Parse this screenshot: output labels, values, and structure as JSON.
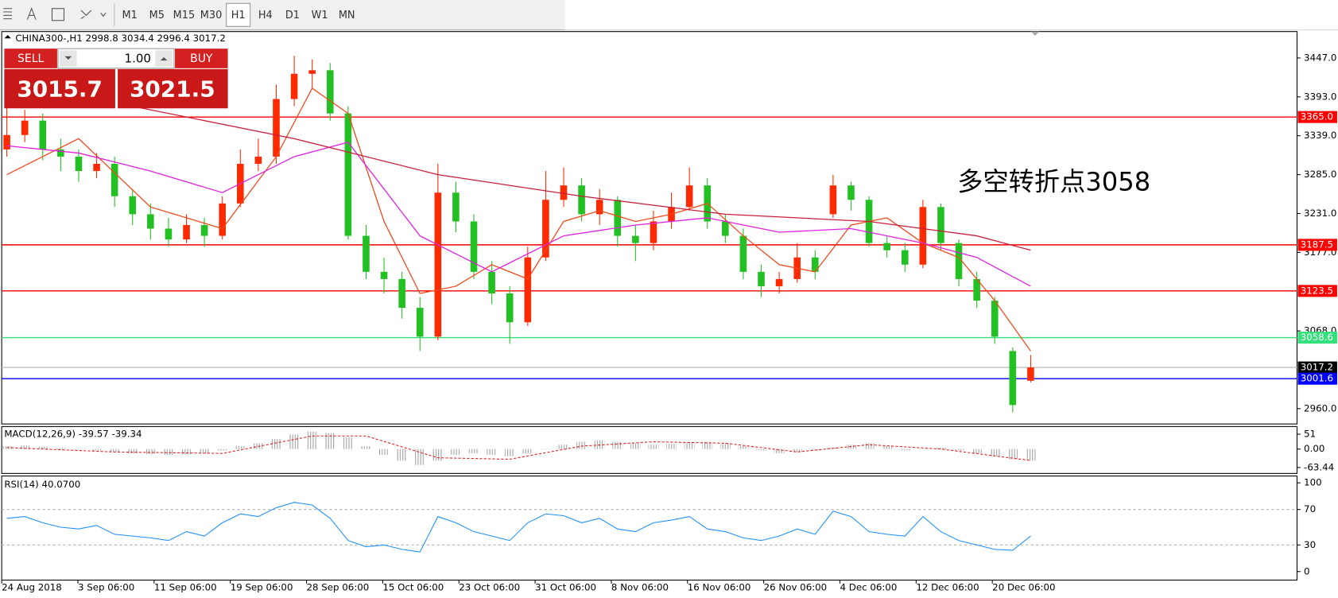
{
  "toolbar": {
    "timeframes": [
      "M1",
      "M5",
      "M15",
      "M30",
      "H1",
      "H4",
      "D1",
      "W1",
      "MN"
    ],
    "active": "H1"
  },
  "trade_panel": {
    "sell": "SELL",
    "buy": "BUY",
    "lot": "1.00",
    "sell_price": "3015.7",
    "buy_price": "3021.5"
  },
  "chart_data": {
    "type": "candlestick",
    "header": "CHINA300-,H1  2998.8 3034.4 2996.4 3017.2",
    "annotation": "多空转折点3058",
    "up_color": "#ff2a00",
    "down_color": "#22c022",
    "ylim": [
      2938.7,
      3483.7
    ],
    "yticks": [
      {
        "value": 3447,
        "label": "3447.0"
      },
      {
        "value": 3393,
        "label": "3393.0"
      },
      {
        "value": 3339,
        "label": "3339.0"
      },
      {
        "value": 3285,
        "label": "3285.0"
      },
      {
        "value": 3231,
        "label": "3231.0"
      },
      {
        "value": 3177,
        "label": "3177.0"
      },
      {
        "value": 3068,
        "label": "3068.0"
      },
      {
        "value": 2960,
        "label": "2960.0"
      }
    ],
    "x_tick_labels": [
      "24 Aug 2018",
      "3 Sep 06:00",
      "11 Sep 06:00",
      "19 Sep 06:00",
      "28 Sep 06:00",
      "15 Oct 06:00",
      "23 Oct 06:00",
      "31 Oct 06:00",
      "8 Nov 06:00",
      "16 Nov 06:00",
      "26 Nov 06:00",
      "4 Dec 06:00",
      "12 Dec 06:00",
      "20 Dec 06:00"
    ],
    "candles": [
      [
        3320,
        3380,
        3310,
        3340
      ],
      [
        3340,
        3375,
        3330,
        3360
      ],
      [
        3360,
        3370,
        3305,
        3320
      ],
      [
        3320,
        3335,
        3290,
        3310
      ],
      [
        3310,
        3320,
        3275,
        3290
      ],
      [
        3290,
        3315,
        3280,
        3300
      ],
      [
        3300,
        3310,
        3240,
        3255
      ],
      [
        3255,
        3265,
        3215,
        3230
      ],
      [
        3230,
        3245,
        3195,
        3210
      ],
      [
        3210,
        3225,
        3185,
        3195
      ],
      [
        3195,
        3230,
        3190,
        3215
      ],
      [
        3215,
        3225,
        3185,
        3200
      ],
      [
        3200,
        3255,
        3195,
        3245
      ],
      [
        3245,
        3320,
        3240,
        3300
      ],
      [
        3300,
        3335,
        3290,
        3310
      ],
      [
        3310,
        3410,
        3300,
        3390
      ],
      [
        3390,
        3450,
        3380,
        3425
      ],
      [
        3425,
        3445,
        3405,
        3430
      ],
      [
        3430,
        3440,
        3360,
        3370
      ],
      [
        3370,
        3380,
        3195,
        3200
      ],
      [
        3200,
        3215,
        3140,
        3150
      ],
      [
        3150,
        3170,
        3120,
        3140
      ],
      [
        3140,
        3150,
        3085,
        3100
      ],
      [
        3100,
        3115,
        3040,
        3060
      ],
      [
        3060,
        3300,
        3055,
        3260
      ],
      [
        3260,
        3275,
        3205,
        3220
      ],
      [
        3220,
        3230,
        3140,
        3150
      ],
      [
        3150,
        3165,
        3105,
        3120
      ],
      [
        3120,
        3130,
        3050,
        3080
      ],
      [
        3080,
        3185,
        3075,
        3170
      ],
      [
        3170,
        3290,
        3165,
        3250
      ],
      [
        3250,
        3295,
        3240,
        3270
      ],
      [
        3270,
        3280,
        3220,
        3230
      ],
      [
        3230,
        3265,
        3215,
        3250
      ],
      [
        3250,
        3255,
        3185,
        3200
      ],
      [
        3200,
        3215,
        3165,
        3190
      ],
      [
        3190,
        3235,
        3180,
        3220
      ],
      [
        3220,
        3260,
        3210,
        3240
      ],
      [
        3240,
        3295,
        3235,
        3270
      ],
      [
        3270,
        3280,
        3210,
        3220
      ],
      [
        3220,
        3230,
        3190,
        3200
      ],
      [
        3200,
        3210,
        3140,
        3150
      ],
      [
        3150,
        3160,
        3115,
        3130
      ],
      [
        3130,
        3150,
        3120,
        3140
      ],
      [
        3140,
        3190,
        3135,
        3170
      ],
      [
        3170,
        3180,
        3140,
        3150
      ],
      [
        3230,
        3285,
        3225,
        3270
      ],
      [
        3270,
        3275,
        3235,
        3250
      ],
      [
        3250,
        3255,
        3185,
        3190
      ],
      [
        3190,
        3200,
        3170,
        3180
      ],
      [
        3180,
        3190,
        3150,
        3160
      ],
      [
        3160,
        3250,
        3155,
        3240
      ],
      [
        3240,
        3245,
        3180,
        3190
      ],
      [
        3190,
        3195,
        3130,
        3140
      ],
      [
        3140,
        3150,
        3100,
        3110
      ],
      [
        3110,
        3115,
        3050,
        3060
      ],
      [
        3040,
        3045,
        2955,
        2965
      ],
      [
        2998.8,
        3034.4,
        2996.4,
        3017.2
      ]
    ],
    "ma": [
      {
        "color": "#f04a1a",
        "x": [
          0,
          4,
          8,
          12,
          15,
          17,
          19,
          21,
          23,
          25,
          27,
          29,
          31,
          33,
          35,
          37,
          39,
          41,
          43,
          45,
          47,
          49,
          51,
          53,
          55,
          57
        ],
        "values": [
          3285,
          3335,
          3240,
          3210,
          3310,
          3405,
          3370,
          3220,
          3120,
          3130,
          3160,
          3140,
          3220,
          3235,
          3220,
          3230,
          3245,
          3200,
          3160,
          3150,
          3215,
          3225,
          3190,
          3170,
          3110,
          3040
        ]
      },
      {
        "color": "#e020e0",
        "x": [
          0,
          4,
          8,
          12,
          16,
          19,
          23,
          27,
          31,
          35,
          39,
          43,
          47,
          51,
          54,
          57
        ],
        "values": [
          3325,
          3315,
          3290,
          3260,
          3310,
          3330,
          3200,
          3150,
          3200,
          3215,
          3225,
          3205,
          3210,
          3190,
          3170,
          3130
        ]
      },
      {
        "color": "#c81e3c",
        "x": [
          7,
          16,
          24,
          32,
          40,
          48,
          54,
          57
        ],
        "values": [
          3380,
          3335,
          3285,
          3255,
          3230,
          3220,
          3200,
          3180
        ]
      }
    ],
    "levels": [
      {
        "value": 3365,
        "label": "3365.0",
        "line_color": "#ff0000",
        "tag_color": "#ff0000"
      },
      {
        "value": 3187.5,
        "label": "3187.5",
        "line_color": "#ff0000",
        "tag_color": "#ff0000"
      },
      {
        "value": 3123.5,
        "label": "3123.5",
        "line_color": "#ff0000",
        "tag_color": "#ff0000"
      },
      {
        "value": 3058.6,
        "label": "3058.6",
        "line_color": "#33e07a",
        "tag_color": "#33e07a"
      },
      {
        "value": 3017.2,
        "label": "3017.2",
        "line_color": "#c0c0c0",
        "tag_color": "#000000"
      },
      {
        "value": 3001.6,
        "label": "3001.6",
        "line_color": "#0000ff",
        "tag_color": "#0000ff"
      }
    ],
    "macd": {
      "label": "MACD(12,26,9) -39.57 -39.34",
      "ylim": [
        -83.9,
        77.4
      ],
      "yticks": [
        51,
        {
          "value": 0,
          "label": "0.00"
        },
        -63.44
      ],
      "histogram": [
        10,
        12,
        8,
        4,
        0,
        -5,
        -10,
        -15,
        -18,
        -20,
        -18,
        -15,
        -5,
        10,
        20,
        35,
        50,
        60,
        55,
        40,
        10,
        -20,
        -40,
        -55,
        -40,
        -20,
        -15,
        -20,
        -25,
        -15,
        0,
        15,
        25,
        30,
        25,
        20,
        15,
        18,
        22,
        25,
        20,
        10,
        -5,
        -15,
        -10,
        -5,
        5,
        15,
        20,
        10,
        -5,
        0,
        5,
        -5,
        -15,
        -25,
        -35,
        -39.57
      ],
      "signal": {
        "x": [
          0,
          6,
          12,
          17,
          20,
          24,
          28,
          32,
          36,
          40,
          44,
          48,
          52,
          57
        ],
        "values": [
          5,
          -10,
          -15,
          45,
          45,
          -30,
          -35,
          10,
          25,
          20,
          -10,
          15,
          0,
          -39.34
        ]
      }
    },
    "rsi": {
      "label": "RSI(14) 40.0700",
      "ylim": [
        -9.6,
        107.7
      ],
      "yticks": [
        100,
        70,
        30,
        0
      ],
      "levels": [
        70,
        30
      ],
      "values": [
        60,
        62,
        55,
        50,
        48,
        52,
        42,
        40,
        38,
        35,
        45,
        40,
        55,
        65,
        62,
        72,
        78,
        75,
        60,
        35,
        28,
        30,
        25,
        22,
        62,
        55,
        45,
        40,
        35,
        55,
        65,
        63,
        55,
        60,
        48,
        45,
        55,
        58,
        62,
        48,
        45,
        38,
        35,
        40,
        48,
        42,
        68,
        62,
        45,
        42,
        40,
        62,
        45,
        35,
        30,
        25,
        24,
        40.07
      ]
    }
  }
}
